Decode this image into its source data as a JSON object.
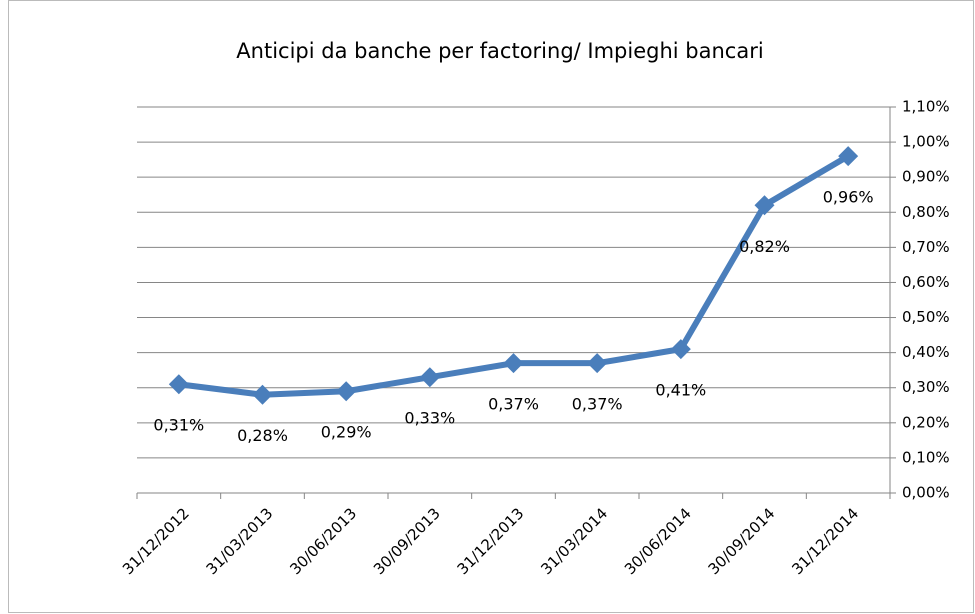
{
  "chart_data": {
    "type": "line",
    "title": "Anticipi da banche per factoring/ Impieghi bancari",
    "categories": [
      "31/12/2012",
      "31/03/2013",
      "30/06/2013",
      "30/09/2013",
      "31/12/2013",
      "31/03/2014",
      "30/06/2014",
      "30/09/2014",
      "31/12/2014"
    ],
    "series": [
      {
        "name": "Anticipi da banche per factoring/ Impieghi bancari",
        "color": "#4a7ebb",
        "values": [
          0.31,
          0.28,
          0.29,
          0.33,
          0.37,
          0.37,
          0.41,
          0.82,
          0.96
        ],
        "value_labels": [
          "0,31%",
          "0,28%",
          "0,29%",
          "0,33%",
          "0,37%",
          "0,37%",
          "0,41%",
          "0,82%",
          "0,96%"
        ]
      }
    ],
    "ylim": [
      0,
      1.1
    ],
    "yticks": [
      {
        "value": 0,
        "label": "0,00%"
      },
      {
        "value": 0.1,
        "label": "0,10%"
      },
      {
        "value": 0.2,
        "label": "0,20%"
      },
      {
        "value": 0.3,
        "label": "0,30%"
      },
      {
        "value": 0.4,
        "label": "0,40%"
      },
      {
        "value": 0.5,
        "label": "0,50%"
      },
      {
        "value": 0.6,
        "label": "0,60%"
      },
      {
        "value": 0.7,
        "label": "0,70%"
      },
      {
        "value": 0.8,
        "label": "0,80%"
      },
      {
        "value": 0.9,
        "label": "0,90%"
      },
      {
        "value": 1.0,
        "label": "1,00%"
      },
      {
        "value": 1.1,
        "label": "1,10%"
      }
    ],
    "grid": true,
    "y_axis_side": "right"
  }
}
